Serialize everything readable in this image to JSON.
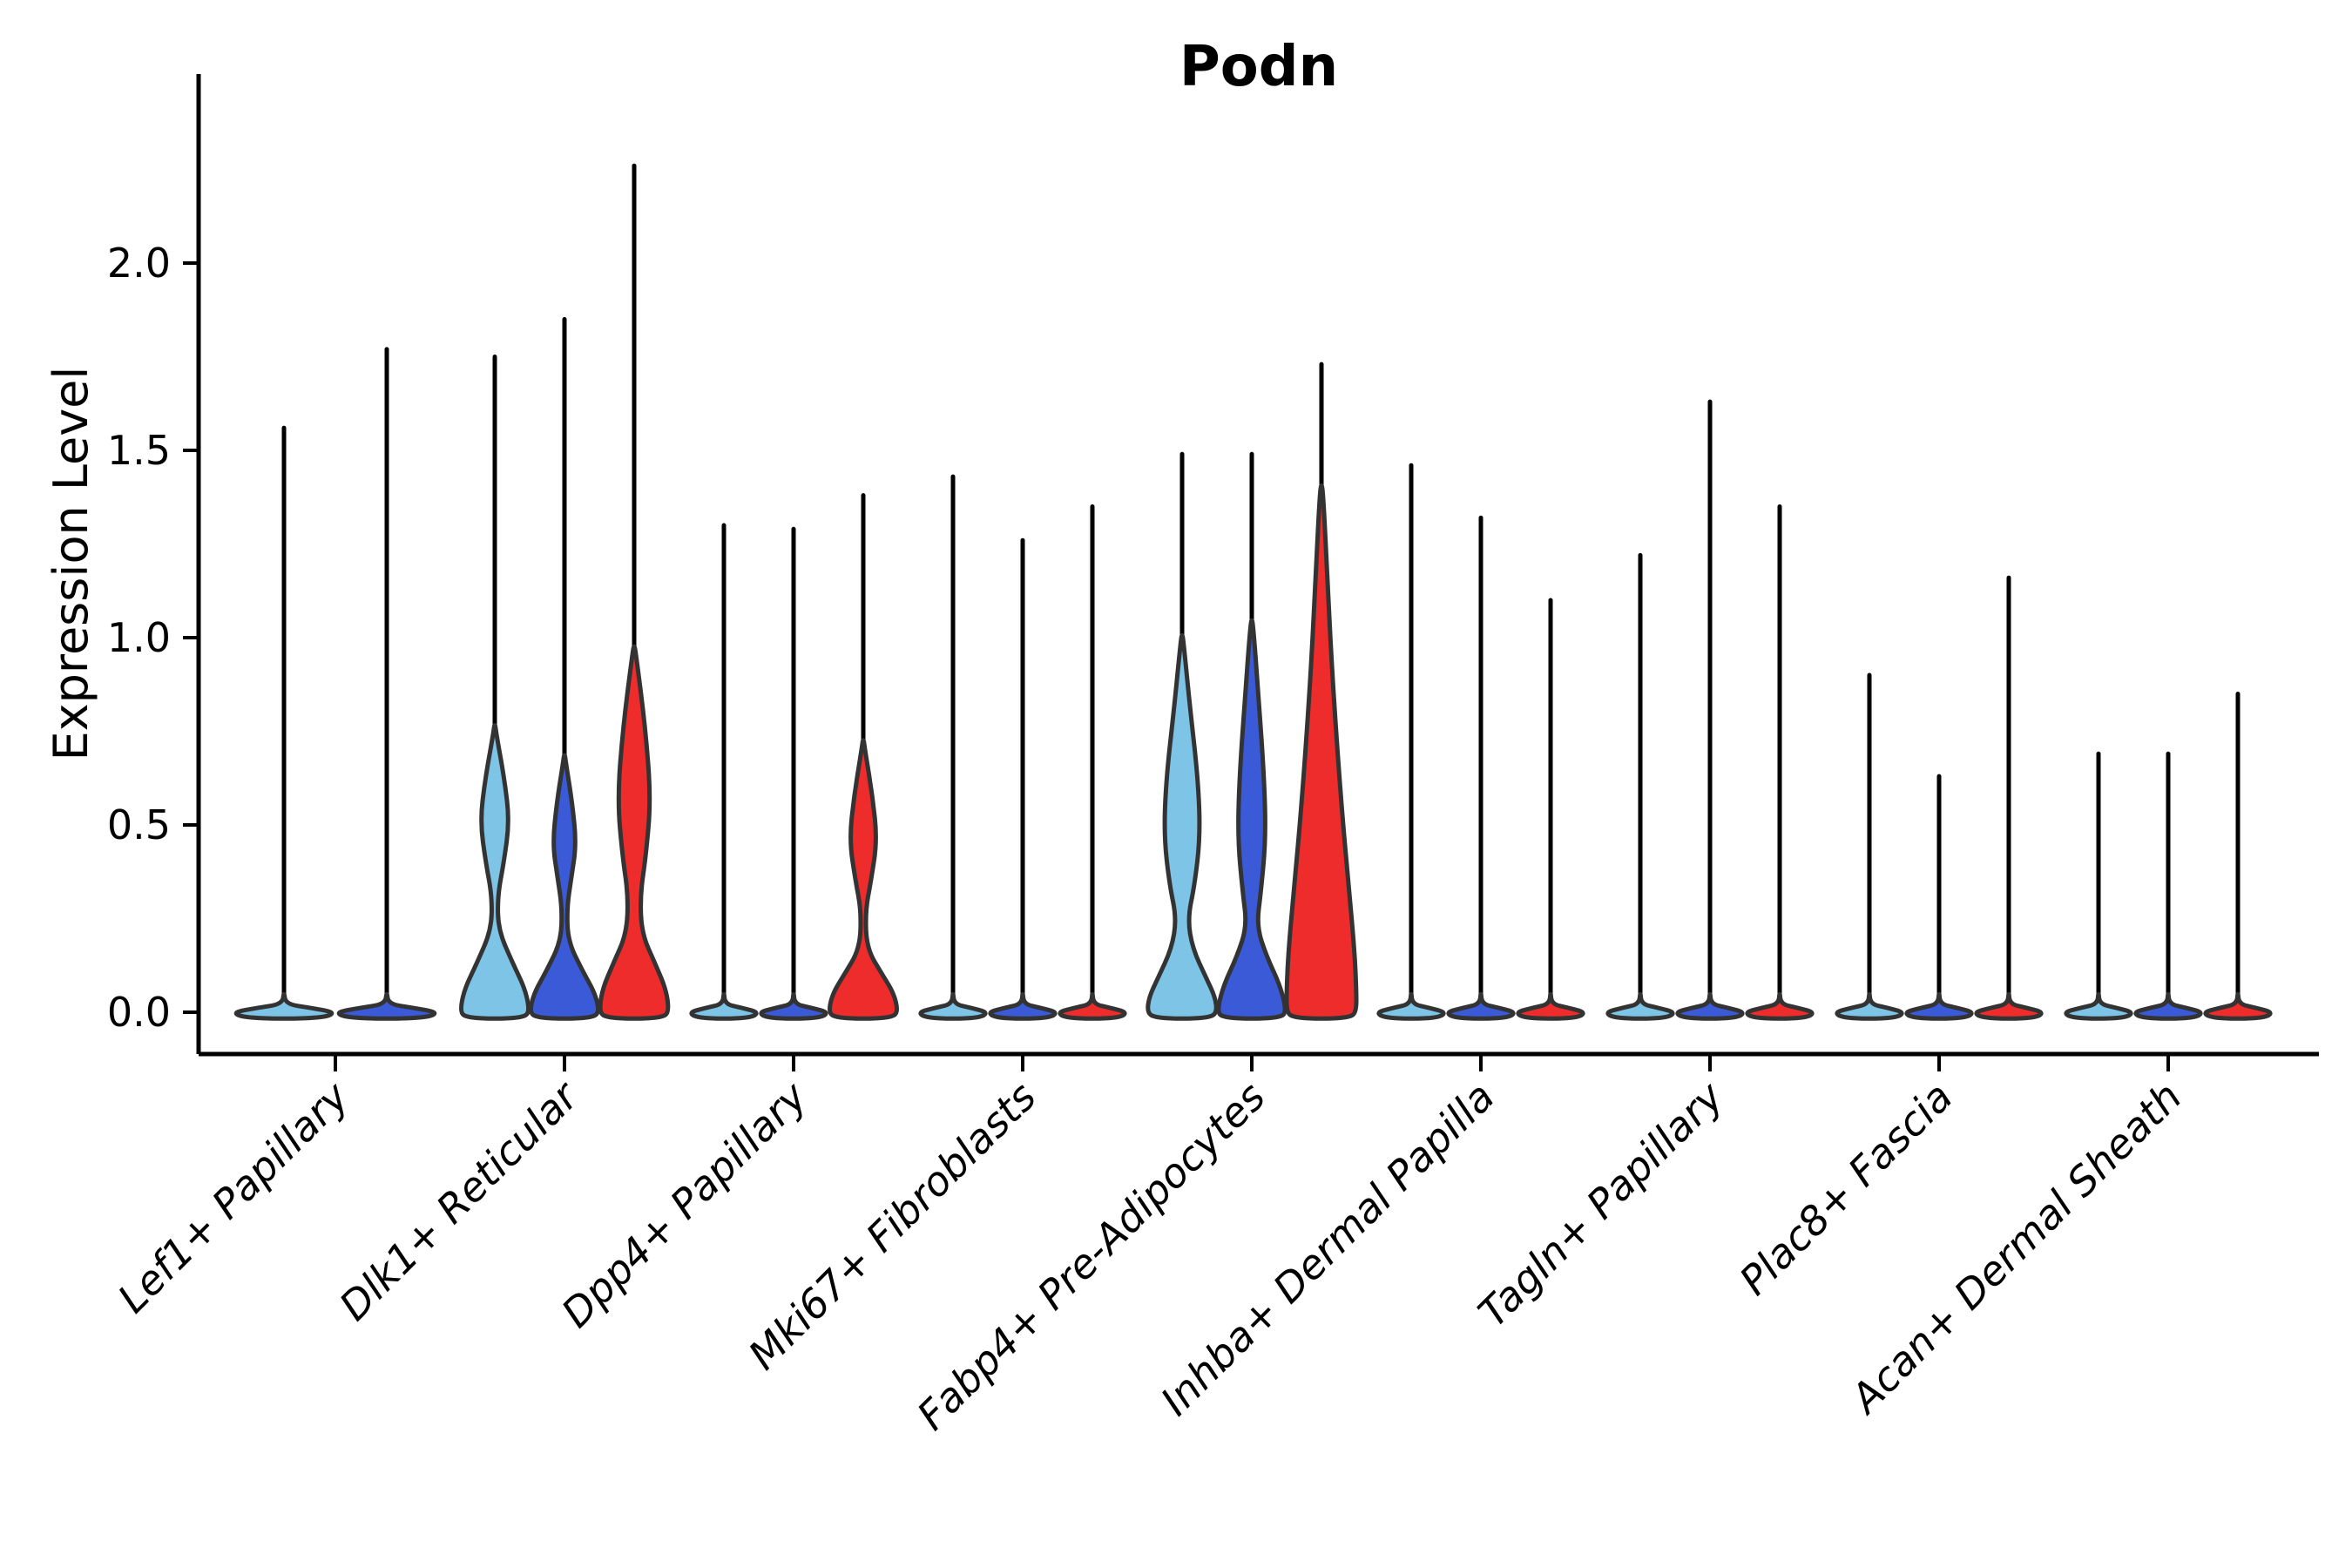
{
  "title": "Podn",
  "ylabel": "Expression Level",
  "colors": {
    "light_blue": "#7DC4E6",
    "dark_blue": "#3A5AD7",
    "red": "#EE2C2C",
    "stroke": "#333333",
    "axis": "#000000"
  },
  "chart_data": {
    "type": "violin",
    "title": "Podn",
    "ylabel": "Expression Level",
    "xlabel": "",
    "ylim": [
      -0.11,
      2.5
    ],
    "yticks": [
      0.0,
      0.5,
      1.0,
      1.5,
      2.0
    ],
    "ytick_labels": [
      "0.0",
      "0.5",
      "1.0",
      "1.5",
      "2.0"
    ],
    "legend": "none",
    "grid": false,
    "series_order": [
      "light_blue",
      "dark_blue",
      "red"
    ],
    "groups": [
      {
        "label": "Lef1+ Papillary",
        "violins": [
          {
            "series": "light_blue",
            "max": 1.56,
            "flat": true
          },
          {
            "series": "dark_blue",
            "max": 1.77,
            "flat": true
          }
        ]
      },
      {
        "label": "Dlk1+ Reticular",
        "violins": [
          {
            "series": "light_blue",
            "max": 1.75,
            "flat": false,
            "profile": [
              [
                0.74,
                0.05
              ],
              [
                0.62,
                0.28
              ],
              [
                0.51,
                0.42
              ],
              [
                0.4,
                0.26
              ],
              [
                0.31,
                0.08
              ],
              [
                0.22,
                0.1
              ],
              [
                0.13,
                0.52
              ],
              [
                0.06,
                0.88
              ],
              [
                0,
                1
              ]
            ]
          },
          {
            "series": "dark_blue",
            "max": 1.85,
            "flat": false,
            "profile": [
              [
                0.66,
                0.05
              ],
              [
                0.56,
                0.22
              ],
              [
                0.45,
                0.34
              ],
              [
                0.36,
                0.2
              ],
              [
                0.28,
                0.07
              ],
              [
                0.19,
                0.1
              ],
              [
                0.11,
                0.52
              ],
              [
                0.05,
                0.88
              ],
              [
                0,
                1
              ]
            ]
          },
          {
            "series": "red",
            "max": 2.26,
            "flat": false,
            "profile": [
              [
                0.95,
                0.06
              ],
              [
                0.76,
                0.32
              ],
              [
                0.57,
                0.48
              ],
              [
                0.42,
                0.34
              ],
              [
                0.31,
                0.17
              ],
              [
                0.21,
                0.22
              ],
              [
                0.13,
                0.6
              ],
              [
                0.06,
                0.92
              ],
              [
                0,
                1
              ]
            ]
          }
        ]
      },
      {
        "label": "Dpp4+ Papillary",
        "violins": [
          {
            "series": "light_blue",
            "max": 1.3,
            "flat": true
          },
          {
            "series": "dark_blue",
            "max": 1.29,
            "flat": true
          },
          {
            "series": "red",
            "max": 1.38,
            "flat": false,
            "profile": [
              [
                0.7,
                0.05
              ],
              [
                0.58,
                0.26
              ],
              [
                0.46,
                0.4
              ],
              [
                0.35,
                0.22
              ],
              [
                0.27,
                0.06
              ],
              [
                0.17,
                0.1
              ],
              [
                0.1,
                0.55
              ],
              [
                0.05,
                0.88
              ],
              [
                0,
                1
              ]
            ]
          }
        ]
      },
      {
        "label": "Mki67+ Fibroblasts",
        "violins": [
          {
            "series": "light_blue",
            "max": 1.43,
            "flat": true
          },
          {
            "series": "dark_blue",
            "max": 1.26,
            "flat": true
          },
          {
            "series": "red",
            "max": 1.35,
            "flat": true
          }
        ]
      },
      {
        "label": "Fabp4+ Pre-Adipocytes",
        "violins": [
          {
            "series": "light_blue",
            "max": 1.49,
            "flat": false,
            "profile": [
              [
                0.98,
                0.05
              ],
              [
                0.82,
                0.22
              ],
              [
                0.62,
                0.46
              ],
              [
                0.47,
                0.52
              ],
              [
                0.34,
                0.36
              ],
              [
                0.25,
                0.16
              ],
              [
                0.17,
                0.3
              ],
              [
                0.09,
                0.7
              ],
              [
                0.04,
                0.95
              ],
              [
                0,
                1
              ]
            ]
          },
          {
            "series": "dark_blue",
            "max": 1.49,
            "flat": false,
            "profile": [
              [
                1.02,
                0.05
              ],
              [
                0.86,
                0.18
              ],
              [
                0.62,
                0.36
              ],
              [
                0.46,
                0.4
              ],
              [
                0.32,
                0.26
              ],
              [
                0.23,
                0.14
              ],
              [
                0.15,
                0.42
              ],
              [
                0.07,
                0.82
              ],
              [
                0,
                1
              ]
            ]
          },
          {
            "series": "red",
            "max": 1.73,
            "flat": false,
            "profile": [
              [
                1.38,
                0.05
              ],
              [
                1.18,
                0.16
              ],
              [
                0.95,
                0.28
              ],
              [
                0.72,
                0.44
              ],
              [
                0.5,
                0.62
              ],
              [
                0.32,
                0.8
              ],
              [
                0.16,
                0.95
              ],
              [
                0.06,
                1.0
              ],
              [
                0,
                1
              ]
            ]
          }
        ]
      },
      {
        "label": "Inhba+ Dermal Papilla",
        "violins": [
          {
            "series": "light_blue",
            "max": 1.46,
            "flat": true
          },
          {
            "series": "dark_blue",
            "max": 1.32,
            "flat": true
          },
          {
            "series": "red",
            "max": 1.1,
            "flat": true
          }
        ]
      },
      {
        "label": "Tagln+ Papillary",
        "violins": [
          {
            "series": "light_blue",
            "max": 1.22,
            "flat": true
          },
          {
            "series": "dark_blue",
            "max": 1.63,
            "flat": true
          },
          {
            "series": "red",
            "max": 1.35,
            "flat": true
          }
        ]
      },
      {
        "label": "Plac8+ Fascia",
        "violins": [
          {
            "series": "light_blue",
            "max": 0.9,
            "flat": true
          },
          {
            "series": "dark_blue",
            "max": 0.63,
            "flat": true
          },
          {
            "series": "red",
            "max": 1.16,
            "flat": true
          }
        ]
      },
      {
        "label": "Acan+ Dermal Sheath",
        "violins": [
          {
            "series": "light_blue",
            "max": 0.69,
            "flat": true
          },
          {
            "series": "dark_blue",
            "max": 0.69,
            "flat": true
          },
          {
            "series": "red",
            "max": 0.85,
            "flat": true
          }
        ]
      }
    ]
  }
}
